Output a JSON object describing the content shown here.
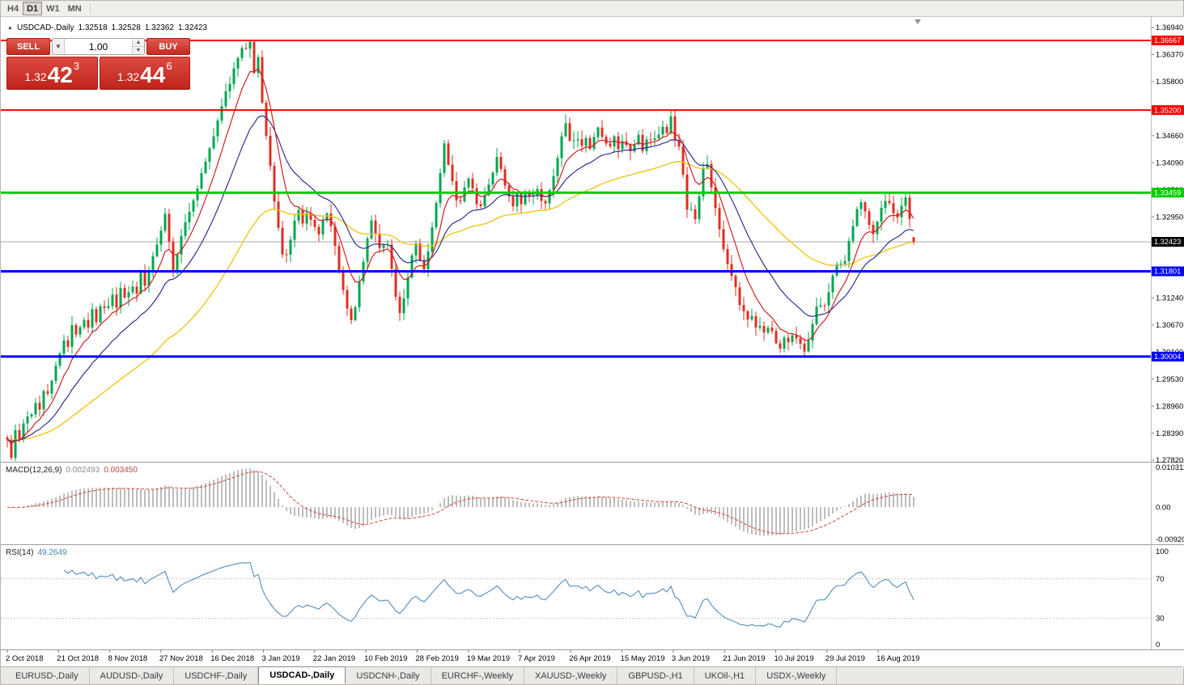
{
  "icons": {
    "collapse_arrow": "▲",
    "chevron_down": "▼",
    "spinner_up": "▲",
    "spinner_down": "▼"
  },
  "colors": {
    "candle_up": "#00a651",
    "candle_down": "#dd2f23",
    "ma_fast": "#d02020",
    "ma_mid": "#2e3192",
    "ma_slow": "#f0c20c",
    "macd_histogram": "#bdbdbd",
    "macd_signal": "#cf4a41",
    "rsi_line": "#4682b4",
    "rsi_levels": "#c8c8c8",
    "current_price_line": "#aaaaaa",
    "current_price_tag": "#000000",
    "resistance_red": "#ff0000",
    "support_green": "#00cc00",
    "support_blue": "#0000ff",
    "trade_panel_red": "#c9281e"
  },
  "toolbar": {
    "periods": [
      {
        "label": "H4",
        "active": false
      },
      {
        "label": "D1",
        "active": true
      },
      {
        "label": "W1",
        "active": false
      },
      {
        "label": "MN",
        "active": false
      }
    ]
  },
  "chart_header": {
    "symbol": "USDCAD-,Daily",
    "open": "1.32518",
    "high": "1.32528",
    "low": "1.32362",
    "close": "1.32423"
  },
  "trade_panel": {
    "sell_label": "SELL",
    "buy_label": "BUY",
    "volume": "1.00",
    "sell_price": {
      "prefix": "1.32",
      "pips": "42",
      "point": "3"
    },
    "buy_price": {
      "prefix": "1.32",
      "pips": "44",
      "point": "6"
    }
  },
  "chart_data": {
    "type": "candlestick",
    "symbol": "USDCAD-",
    "timeframe": "Daily",
    "ohlc_display": {
      "open": 1.32518,
      "high": 1.32528,
      "low": 1.32362,
      "close": 1.32423
    },
    "ylim": [
      1.2782,
      1.3694
    ],
    "y_axis_labels": [
      "1.36940",
      "1.36370",
      "1.35800",
      "1.35230",
      "1.34660",
      "1.34090",
      "1.33520",
      "1.32950",
      "1.32380",
      "1.31810",
      "1.31240",
      "1.30670",
      "1.30100",
      "1.29530",
      "1.28960",
      "1.28390",
      "1.27820"
    ],
    "price_lines": [
      {
        "value": 1.36667,
        "label": "1.36667",
        "color": "#ff0000",
        "width": 2
      },
      {
        "value": 1.352,
        "label": "1.35200",
        "color": "#ff0000",
        "width": 2
      },
      {
        "value": 1.33459,
        "label": "1.33459",
        "color": "#00cc00",
        "width": 3
      },
      {
        "value": 1.31801,
        "label": "1.31801",
        "color": "#0000ff",
        "width": 3
      },
      {
        "value": 1.30004,
        "label": "1.30004",
        "color": "#0000ff",
        "width": 3
      }
    ],
    "current_price": {
      "value": 1.32423,
      "label": "1.32423"
    },
    "x_axis_labels": [
      "2 Oct 2018",
      "21 Oct 2018",
      "8 Nov 2018",
      "27 Nov 2018",
      "16 Dec 2018",
      "3 Jan 2019",
      "22 Jan 2019",
      "10 Feb 2019",
      "28 Feb 2019",
      "19 Mar 2019",
      "7 Apr 2019",
      "26 Apr 2019",
      "15 May 2019",
      "3 Jun 2019",
      "21 Jun 2019",
      "10 Jul 2019",
      "29 Jul 2019",
      "16 Aug 2019"
    ],
    "macd": {
      "name": "MACD(12,26,9)",
      "value": "0.002493",
      "signal": "0.003450",
      "axis": [
        "0.010311",
        "0.00",
        "-0.009203"
      ]
    },
    "rsi": {
      "name": "RSI(14)",
      "value": "49.2649",
      "axis": [
        "100",
        "70",
        "30",
        "0"
      ],
      "levels": [
        70,
        30
      ]
    },
    "price_path": [
      [
        8,
        1.283
      ],
      [
        13,
        1.2785
      ],
      [
        18,
        1.2845
      ],
      [
        24,
        1.282
      ],
      [
        30,
        1.288
      ],
      [
        36,
        1.286
      ],
      [
        42,
        1.291
      ],
      [
        48,
        1.289
      ],
      [
        54,
        1.294
      ],
      [
        60,
        1.292
      ],
      [
        66,
        1.297
      ],
      [
        71,
        1.3
      ],
      [
        77,
        1.304
      ],
      [
        83,
        1.302
      ],
      [
        89,
        1.307
      ],
      [
        95,
        1.3045
      ],
      [
        101,
        1.309
      ],
      [
        107,
        1.306
      ],
      [
        113,
        1.31
      ],
      [
        119,
        1.3075
      ],
      [
        125,
        1.3115
      ],
      [
        131,
        1.309
      ],
      [
        137,
        1.313
      ],
      [
        143,
        1.3105
      ],
      [
        149,
        1.3145
      ],
      [
        155,
        1.3115
      ],
      [
        161,
        1.316
      ],
      [
        167,
        1.313
      ],
      [
        173,
        1.3175
      ],
      [
        179,
        1.3145
      ],
      [
        185,
        1.3195
      ],
      [
        191,
        1.323
      ],
      [
        197,
        1.3265
      ],
      [
        203,
        1.33
      ],
      [
        208,
        1.324
      ],
      [
        212,
        1.3175
      ],
      [
        218,
        1.321
      ],
      [
        224,
        1.3265
      ],
      [
        230,
        1.3295
      ],
      [
        236,
        1.332
      ],
      [
        242,
        1.3355
      ],
      [
        248,
        1.3385
      ],
      [
        254,
        1.3415
      ],
      [
        260,
        1.3445
      ],
      [
        266,
        1.349
      ],
      [
        272,
        1.3525
      ],
      [
        278,
        1.3555
      ],
      [
        284,
        1.3585
      ],
      [
        290,
        1.3615
      ],
      [
        296,
        1.364
      ],
      [
        302,
        1.3655
      ],
      [
        308,
        1.3662
      ],
      [
        313,
        1.36
      ],
      [
        317,
        1.3645
      ],
      [
        321,
        1.357
      ],
      [
        325,
        1.3505
      ],
      [
        330,
        1.3445
      ],
      [
        335,
        1.337
      ],
      [
        340,
        1.3305
      ],
      [
        345,
        1.325
      ],
      [
        350,
        1.3195
      ],
      [
        356,
        1.3235
      ],
      [
        362,
        1.3275
      ],
      [
        368,
        1.3305
      ],
      [
        374,
        1.327
      ],
      [
        380,
        1.331
      ],
      [
        386,
        1.328
      ],
      [
        392,
        1.3245
      ],
      [
        398,
        1.3285
      ],
      [
        404,
        1.33
      ],
      [
        410,
        1.3255
      ],
      [
        416,
        1.32
      ],
      [
        422,
        1.315
      ],
      [
        428,
        1.3095
      ],
      [
        434,
        1.307
      ],
      [
        440,
        1.313
      ],
      [
        446,
        1.3185
      ],
      [
        452,
        1.324
      ],
      [
        458,
        1.3285
      ],
      [
        464,
        1.3255
      ],
      [
        470,
        1.322
      ],
      [
        476,
        1.325
      ],
      [
        482,
        1.3195
      ],
      [
        488,
        1.313
      ],
      [
        494,
        1.309
      ],
      [
        500,
        1.3145
      ],
      [
        506,
        1.32
      ],
      [
        512,
        1.3245
      ],
      [
        518,
        1.321
      ],
      [
        524,
        1.318
      ],
      [
        530,
        1.3235
      ],
      [
        536,
        1.33
      ],
      [
        542,
        1.337
      ],
      [
        548,
        1.3445
      ],
      [
        554,
        1.3405
      ],
      [
        560,
        1.3355
      ],
      [
        566,
        1.3315
      ],
      [
        572,
        1.3345
      ],
      [
        578,
        1.338
      ],
      [
        584,
        1.3345
      ],
      [
        590,
        1.3305
      ],
      [
        596,
        1.333
      ],
      [
        602,
        1.336
      ],
      [
        608,
        1.339
      ],
      [
        614,
        1.342
      ],
      [
        620,
        1.3385
      ],
      [
        626,
        1.3345
      ],
      [
        632,
        1.3315
      ],
      [
        638,
        1.334
      ],
      [
        644,
        1.3315
      ],
      [
        650,
        1.335
      ],
      [
        656,
        1.3325
      ],
      [
        662,
        1.336
      ],
      [
        668,
        1.3335
      ],
      [
        674,
        1.3315
      ],
      [
        680,
        1.336
      ],
      [
        686,
        1.3405
      ],
      [
        692,
        1.3455
      ],
      [
        698,
        1.349
      ],
      [
        704,
        1.344
      ],
      [
        710,
        1.3465
      ],
      [
        716,
        1.344
      ],
      [
        722,
        1.347
      ],
      [
        728,
        1.3445
      ],
      [
        734,
        1.3465
      ],
      [
        740,
        1.3485
      ],
      [
        746,
        1.3455
      ],
      [
        752,
        1.3435
      ],
      [
        758,
        1.346
      ],
      [
        764,
        1.3435
      ],
      [
        770,
        1.3455
      ],
      [
        776,
        1.3425
      ],
      [
        782,
        1.3445
      ],
      [
        788,
        1.3465
      ],
      [
        794,
        1.3435
      ],
      [
        800,
        1.346
      ],
      [
        806,
        1.3445
      ],
      [
        812,
        1.347
      ],
      [
        818,
        1.349
      ],
      [
        823,
        1.347
      ],
      [
        827,
        1.3512
      ],
      [
        831,
        1.348
      ],
      [
        835,
        1.343
      ],
      [
        839,
        1.3455
      ],
      [
        843,
        1.3385
      ],
      [
        847,
        1.3325
      ],
      [
        851,
        1.3285
      ],
      [
        855,
        1.3325
      ],
      [
        859,
        1.3285
      ],
      [
        863,
        1.3335
      ],
      [
        867,
        1.339
      ],
      [
        871,
        1.342
      ],
      [
        875,
        1.3385
      ],
      [
        879,
        1.3345
      ],
      [
        885,
        1.3295
      ],
      [
        891,
        1.3245
      ],
      [
        897,
        1.3205
      ],
      [
        903,
        1.3175
      ],
      [
        909,
        1.3135
      ],
      [
        915,
        1.3105
      ],
      [
        921,
        1.3075
      ],
      [
        927,
        1.3095
      ],
      [
        933,
        1.3055
      ],
      [
        939,
        1.3075
      ],
      [
        945,
        1.3045
      ],
      [
        951,
        1.3065
      ],
      [
        957,
        1.3035
      ],
      [
        963,
        1.3015
      ],
      [
        969,
        1.3045
      ],
      [
        975,
        1.3025
      ],
      [
        981,
        1.3055
      ],
      [
        987,
        1.3025
      ],
      [
        993,
        1.3012
      ],
      [
        999,
        1.3045
      ],
      [
        1005,
        1.3085
      ],
      [
        1011,
        1.3115
      ],
      [
        1017,
        1.3095
      ],
      [
        1023,
        1.3135
      ],
      [
        1029,
        1.3175
      ],
      [
        1035,
        1.3215
      ],
      [
        1041,
        1.3185
      ],
      [
        1047,
        1.3235
      ],
      [
        1053,
        1.3275
      ],
      [
        1059,
        1.3315
      ],
      [
        1065,
        1.334
      ],
      [
        1071,
        1.3285
      ],
      [
        1077,
        1.325
      ],
      [
        1083,
        1.329
      ],
      [
        1089,
        1.332
      ],
      [
        1095,
        1.3335
      ],
      [
        1101,
        1.3305
      ],
      [
        1107,
        1.3285
      ],
      [
        1113,
        1.3315
      ],
      [
        1118,
        1.333
      ],
      [
        1122,
        1.3295
      ],
      [
        1126,
        1.3265
      ],
      [
        1130,
        1.3252
      ]
    ]
  },
  "tabs": [
    {
      "label": "EURUSD-,Daily",
      "active": false
    },
    {
      "label": "AUDUSD-,Daily",
      "active": false
    },
    {
      "label": "USDCHF-,Daily",
      "active": false
    },
    {
      "label": "USDCAD-,Daily",
      "active": true
    },
    {
      "label": "USDCNH-,Daily",
      "active": false
    },
    {
      "label": "EURCHF-,Weekly",
      "active": false
    },
    {
      "label": "XAUUSD-,Weekly",
      "active": false
    },
    {
      "label": "GBPUSD-,H1",
      "active": false
    },
    {
      "label": "UKOil-,H1",
      "active": false
    },
    {
      "label": "USDX-,Weekly",
      "active": false
    }
  ]
}
